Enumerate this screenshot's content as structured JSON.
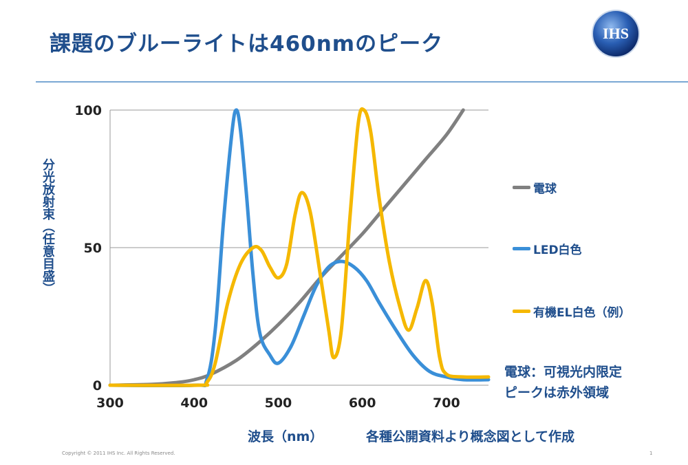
{
  "header": {
    "title": "課題のブルーライトは460nmのピーク",
    "logo_text": "IHS"
  },
  "footer": {
    "copyright": "Copyright © 2011 IHS Inc. All Rights Reserved.",
    "page_number": "1"
  },
  "chart_data": {
    "type": "line",
    "title": "",
    "xlabel": "波長（nm）",
    "ylabel": "分光放射束（任意目盛）",
    "xlim": [
      300,
      750
    ],
    "ylim": [
      0,
      100
    ],
    "x_ticks": [
      "300",
      "400",
      "500",
      "600",
      "700"
    ],
    "y_ticks": [
      "0",
      "50",
      "100"
    ],
    "grid": "horizontal",
    "legend_position": "right",
    "source_note": "各種公開資料より概念図として作成",
    "annotation_line1": "電球：可視光内限定",
    "annotation_line2": "ピークは赤外領域",
    "series": [
      {
        "name": "電球",
        "color": "#808080",
        "points": [
          [
            300,
            0
          ],
          [
            350,
            0.3
          ],
          [
            380,
            1
          ],
          [
            400,
            2
          ],
          [
            420,
            4
          ],
          [
            450,
            9
          ],
          [
            475,
            15
          ],
          [
            500,
            22
          ],
          [
            525,
            30
          ],
          [
            550,
            39
          ],
          [
            575,
            47
          ],
          [
            600,
            55
          ],
          [
            625,
            64
          ],
          [
            650,
            73
          ],
          [
            675,
            82
          ],
          [
            700,
            91
          ],
          [
            720,
            100
          ]
        ]
      },
      {
        "name": "LED白色",
        "color": "#3a8fd8",
        "points": [
          [
            300,
            0
          ],
          [
            400,
            0
          ],
          [
            415,
            2
          ],
          [
            425,
            20
          ],
          [
            435,
            60
          ],
          [
            445,
            92
          ],
          [
            450,
            100
          ],
          [
            455,
            93
          ],
          [
            462,
            70
          ],
          [
            470,
            40
          ],
          [
            478,
            19
          ],
          [
            490,
            11
          ],
          [
            500,
            8
          ],
          [
            515,
            14
          ],
          [
            530,
            25
          ],
          [
            545,
            36
          ],
          [
            560,
            43
          ],
          [
            575,
            45
          ],
          [
            590,
            43
          ],
          [
            605,
            38
          ],
          [
            620,
            30
          ],
          [
            640,
            20
          ],
          [
            660,
            11
          ],
          [
            680,
            5
          ],
          [
            700,
            3
          ],
          [
            720,
            2
          ],
          [
            750,
            2
          ]
        ]
      },
      {
        "name": "有機EL白色（例）",
        "color": "#f5b800",
        "points": [
          [
            300,
            0
          ],
          [
            405,
            0
          ],
          [
            415,
            1
          ],
          [
            425,
            8
          ],
          [
            440,
            30
          ],
          [
            455,
            44
          ],
          [
            470,
            50
          ],
          [
            480,
            49
          ],
          [
            490,
            43
          ],
          [
            500,
            39
          ],
          [
            510,
            44
          ],
          [
            520,
            62
          ],
          [
            528,
            70
          ],
          [
            538,
            63
          ],
          [
            550,
            40
          ],
          [
            560,
            20
          ],
          [
            566,
            10
          ],
          [
            575,
            20
          ],
          [
            585,
            60
          ],
          [
            595,
            95
          ],
          [
            602,
            100
          ],
          [
            610,
            92
          ],
          [
            620,
            68
          ],
          [
            632,
            45
          ],
          [
            645,
            28
          ],
          [
            655,
            20
          ],
          [
            665,
            28
          ],
          [
            675,
            38
          ],
          [
            683,
            30
          ],
          [
            692,
            10
          ],
          [
            700,
            4
          ],
          [
            720,
            3
          ],
          [
            750,
            3
          ]
        ]
      }
    ]
  }
}
